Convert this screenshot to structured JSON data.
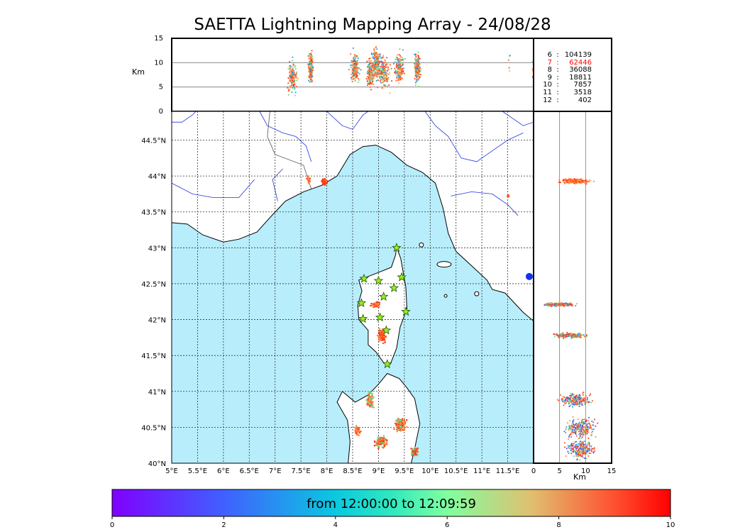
{
  "title": "SAETTA Lightning Mapping Array - 24/08/28",
  "chart_data": {
    "type": "scatter",
    "panels": {
      "altitude_time": {
        "ylabel": "Km",
        "ylim": [
          0,
          15
        ],
        "yticks": [
          "0",
          "5",
          "10",
          "15"
        ]
      },
      "map": {
        "lon_range": [
          5.0,
          12.0
        ],
        "lat_range": [
          40.0,
          44.9
        ],
        "xtick_labels": [
          "5°E",
          "5.5°E",
          "6°E",
          "6.5°E",
          "7°E",
          "7.5°E",
          "8°E",
          "8.5°E",
          "9°E",
          "9.5°E",
          "10°E",
          "10.5°E",
          "11°E",
          "11.5°E"
        ],
        "ytick_labels": [
          "40°N",
          "40.5°N",
          "41°N",
          "41.5°N",
          "42°N",
          "42.5°N",
          "43°N",
          "43.5°N",
          "44°N",
          "44.5°N"
        ],
        "grid": true,
        "sea_color": "#b8eefc",
        "land_color": "#ffffff"
      },
      "altitude_lat": {
        "xlabel": "Km",
        "xlim": [
          0,
          15
        ],
        "xticks": [
          "0",
          "5",
          "10",
          "15"
        ]
      }
    },
    "station_counts": [
      {
        "stations": "6",
        "count": "104139",
        "color": "#000000"
      },
      {
        "stations": "7",
        "count": "62446",
        "color": "#ff0000"
      },
      {
        "stations": "8",
        "count": "36088",
        "color": "#000000"
      },
      {
        "stations": "9",
        "count": "18811",
        "color": "#000000"
      },
      {
        "stations": "10",
        "count": "7857",
        "color": "#000000"
      },
      {
        "stations": "11",
        "count": "3518",
        "color": "#000000"
      },
      {
        "stations": "12",
        "count": "402",
        "color": "#000000"
      }
    ],
    "stations_lonlat": [
      [
        9.35,
        43.0
      ],
      [
        8.72,
        42.57
      ],
      [
        9.0,
        42.54
      ],
      [
        9.45,
        42.59
      ],
      [
        9.3,
        42.44
      ],
      [
        9.1,
        42.32
      ],
      [
        8.67,
        42.23
      ],
      [
        9.53,
        42.11
      ],
      [
        8.7,
        42.01
      ],
      [
        9.03,
        42.03
      ],
      [
        9.15,
        41.85
      ],
      [
        9.17,
        41.38
      ]
    ],
    "clusters_lonlat": [
      {
        "lon": 7.65,
        "lat": 43.94,
        "spread": [
          0.03,
          0.05
        ],
        "n": 30,
        "colors": [
          "#ff5522",
          "#ff8844"
        ]
      },
      {
        "lon": 7.95,
        "lat": 43.92,
        "spread": [
          0.05,
          0.04
        ],
        "n": 40,
        "colors": [
          "#ff5522",
          "#ff3311"
        ]
      },
      {
        "lon": 11.5,
        "lat": 43.72,
        "spread": [
          0.02,
          0.02
        ],
        "n": 6,
        "colors": [
          "#ff5522"
        ]
      },
      {
        "lon": 8.95,
        "lat": 42.21,
        "spread": [
          0.08,
          0.03
        ],
        "n": 60,
        "colors": [
          "#ff5522",
          "#ff3311",
          "#ff8844"
        ]
      },
      {
        "lon": 9.07,
        "lat": 41.77,
        "spread": [
          0.07,
          0.08
        ],
        "n": 80,
        "colors": [
          "#ff5522",
          "#ff3311",
          "#ff8844"
        ]
      },
      {
        "lon": 8.83,
        "lat": 40.88,
        "spread": [
          0.07,
          0.1
        ],
        "n": 80,
        "colors": [
          "#ff5522",
          "#ff8844",
          "#66dd88"
        ]
      },
      {
        "lon": 9.42,
        "lat": 40.53,
        "spread": [
          0.1,
          0.09
        ],
        "n": 120,
        "colors": [
          "#ff5522",
          "#ff3311",
          "#ff8844",
          "#66dd88"
        ]
      },
      {
        "lon": 9.05,
        "lat": 40.3,
        "spread": [
          0.1,
          0.08
        ],
        "n": 100,
        "colors": [
          "#ff5522",
          "#ff3311",
          "#ff8844",
          "#66dd88"
        ]
      },
      {
        "lon": 8.6,
        "lat": 40.45,
        "spread": [
          0.05,
          0.08
        ],
        "n": 40,
        "colors": [
          "#ff5522",
          "#ff8844"
        ]
      },
      {
        "lon": 9.7,
        "lat": 40.15,
        "spread": [
          0.07,
          0.07
        ],
        "n": 60,
        "colors": [
          "#ff5522",
          "#ff3311",
          "#66dd88"
        ]
      }
    ],
    "colorbar": {
      "label": "from 12:00:00 to 12:09:59",
      "range": [
        0,
        10
      ],
      "tick_labels": [
        "0",
        "2",
        "4",
        "6",
        "8",
        "10"
      ],
      "colormap": "rainbow"
    }
  }
}
